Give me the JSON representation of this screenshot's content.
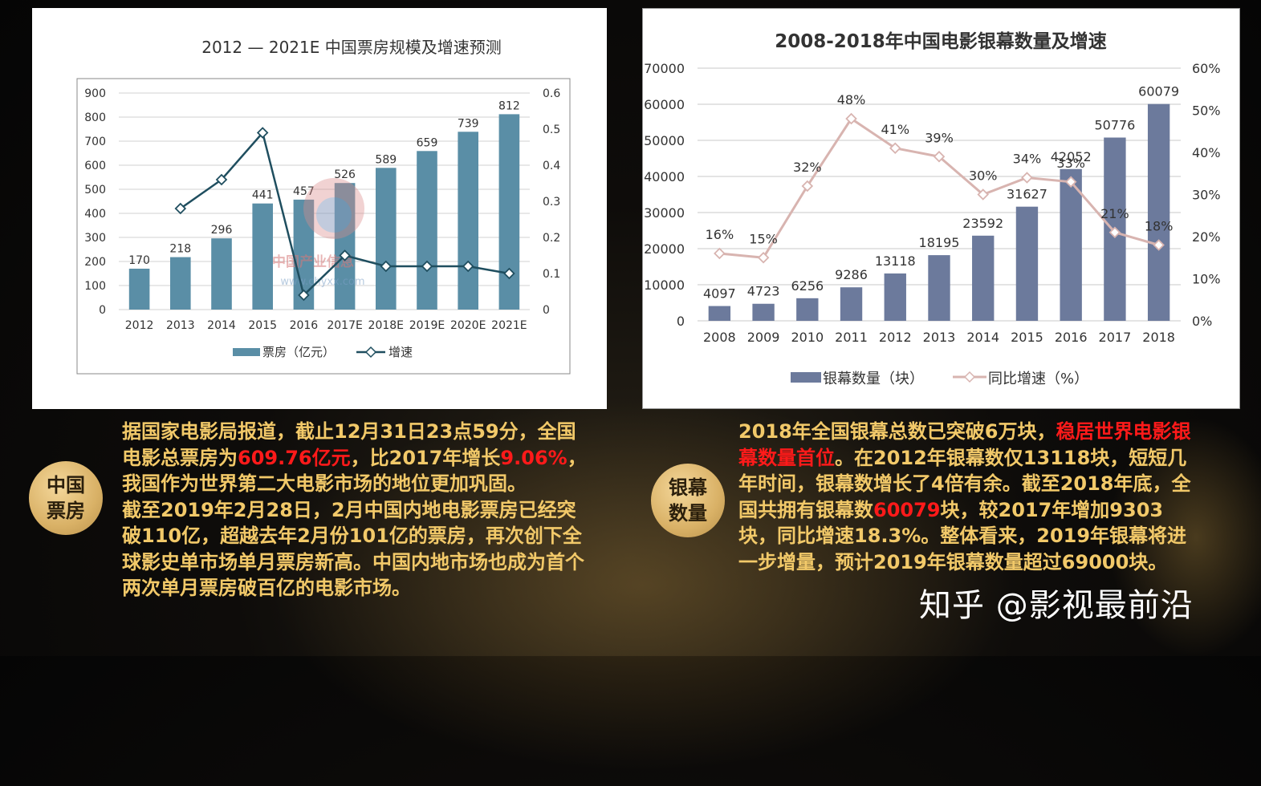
{
  "chart_data": [
    {
      "type": "bar+line",
      "title": "2012 — 2021E 中国票房规模及增速预测",
      "categories": [
        "2012",
        "2013",
        "2014",
        "2015",
        "2016",
        "2017E",
        "2018E",
        "2019E",
        "2020E",
        "2021E"
      ],
      "series": [
        {
          "name": "票房（亿元）",
          "type": "bar",
          "axis": "left",
          "values": [
            170,
            218,
            296,
            441,
            457,
            526,
            589,
            659,
            739,
            812
          ],
          "color": "#5a8ea6"
        },
        {
          "name": "增速",
          "type": "line",
          "axis": "right",
          "values": [
            null,
            0.28,
            0.36,
            0.49,
            0.04,
            0.15,
            0.12,
            0.12,
            0.12,
            0.1
          ],
          "color": "#1f4e5f"
        }
      ],
      "y_left": {
        "min": 0,
        "max": 900,
        "ticks": [
          "0",
          "100",
          "200",
          "300",
          "400",
          "500",
          "600",
          "700",
          "800",
          "900"
        ]
      },
      "y_right": {
        "min": 0,
        "max": 0.6,
        "ticks": [
          "0",
          "0.1",
          "0.2",
          "0.3",
          "0.4",
          "0.5",
          "0.6"
        ]
      },
      "bar_labels": [
        "170",
        "218",
        "296",
        "441",
        "457",
        "526",
        "589",
        "659",
        "739",
        "812"
      ],
      "legend_position": "bottom",
      "grid": true,
      "watermark_text": [
        "中国产业信息",
        "www.chyxx.com"
      ]
    },
    {
      "type": "bar+line",
      "title": "2008-2018年中国电影银幕数量及增速",
      "categories": [
        "2008",
        "2009",
        "2010",
        "2011",
        "2012",
        "2013",
        "2014",
        "2015",
        "2016",
        "2017",
        "2018"
      ],
      "series": [
        {
          "name": "银幕数量（块）",
          "type": "bar",
          "axis": "left",
          "values": [
            4097,
            4723,
            6256,
            9286,
            13118,
            18195,
            23592,
            31627,
            42052,
            50776,
            60079
          ],
          "color": "#6c7a9c"
        },
        {
          "name": "同比增速（%）",
          "type": "line",
          "axis": "right",
          "values": [
            16,
            15,
            32,
            48,
            41,
            39,
            30,
            34,
            33,
            21,
            18
          ],
          "color": "#d8b4b0"
        }
      ],
      "y_left": {
        "min": 0,
        "max": 70000,
        "ticks": [
          "0",
          "10000",
          "20000",
          "30000",
          "40000",
          "50000",
          "60000",
          "70000"
        ]
      },
      "y_right": {
        "min": 0,
        "max": 60,
        "ticks": [
          "0%",
          "10%",
          "20%",
          "30%",
          "40%",
          "50%",
          "60%"
        ]
      },
      "bar_labels": [
        "4097",
        "4723",
        "6256",
        "9286",
        "13118",
        "18195",
        "23592",
        "31627",
        "42052",
        "50776",
        "60079"
      ],
      "line_labels": [
        "16%",
        "15%",
        "32%",
        "48%",
        "41%",
        "39%",
        "30%",
        "34%",
        "33%",
        "21%",
        "18%"
      ],
      "legend_position": "bottom",
      "grid": true
    }
  ],
  "badges": {
    "left": "中国\n票房",
    "right": "银幕\n数量"
  },
  "paragraph_left": {
    "parts": [
      {
        "text": "据国家电影局报道，截止12月31日23点59分，全国电影总票房为",
        "highlight": false
      },
      {
        "text": "609.76亿元",
        "highlight": true
      },
      {
        "text": "，比2017年增长",
        "highlight": false
      },
      {
        "text": "9.06%",
        "highlight": true
      },
      {
        "text": "，我国作为世界第二大电影市场的地位更加巩固。",
        "highlight": false
      }
    ],
    "second": "截至2019年2月28日，2月中国内地电影票房已经突破110亿，超越去年2月份101亿的票房，再次创下全球影史单市场单月票房新高。中国内地市场也成为首个两次单月票房破百亿的电影市场。"
  },
  "paragraph_right": {
    "parts": [
      {
        "text": "2018年全国银幕总数已突破6万块，",
        "highlight": false
      },
      {
        "text": "稳居世界电影银幕数量首位",
        "highlight": true
      },
      {
        "text": "。在2012年银幕数仅13118块，短短几年时间，银幕数增长了4倍有余。截至2018年底，全国共拥有银幕数",
        "highlight": false
      },
      {
        "text": "60079",
        "highlight": true
      },
      {
        "text": "块，较2017年增加9303块，同比增速18.3%。整体看来，2019年银幕将进一步增量，预计2019年银幕数量超过69000块。",
        "highlight": false
      }
    ]
  },
  "watermark": "知乎 @影视最前沿"
}
